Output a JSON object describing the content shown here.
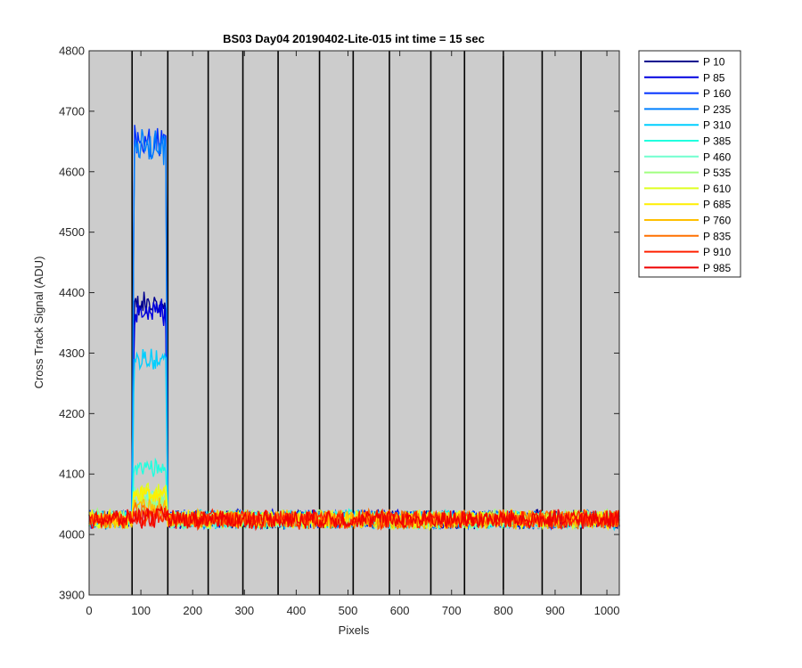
{
  "chart_data": {
    "type": "line",
    "title": "BS03 Day04 20190402-Lite-015 int time = 15 sec",
    "xlabel": "Pixels",
    "ylabel": "Cross Track Signal (ADU)",
    "xlim": [
      0,
      1024
    ],
    "ylim": [
      3900,
      4800
    ],
    "xticks": [
      0,
      100,
      200,
      300,
      400,
      500,
      600,
      700,
      800,
      900,
      1000
    ],
    "yticks": [
      3900,
      4000,
      4100,
      4200,
      4300,
      4400,
      4500,
      4600,
      4700,
      4800
    ],
    "xtick_labels": [
      "0",
      "100",
      "200",
      "300",
      "400",
      "500",
      "600",
      "700",
      "800",
      "900",
      "1000"
    ],
    "ytick_labels": [
      "3900",
      "4000",
      "4100",
      "4200",
      "4300",
      "4400",
      "4500",
      "4600",
      "4700",
      "4800"
    ],
    "background": "#cccccc",
    "legend_position": "outside-top-right",
    "column_dividers": [
      83,
      152,
      230,
      297,
      365,
      445,
      510,
      580,
      660,
      725,
      800,
      875,
      950
    ],
    "baseline": 4025,
    "noise_amplitude": 14,
    "block_range": [
      83,
      152
    ],
    "series": [
      {
        "name": "P 10",
        "color": "#00008f",
        "block_level": 4380
      },
      {
        "name": "P 85",
        "color": "#0000df",
        "block_level": 4370
      },
      {
        "name": "P 160",
        "color": "#0030ff",
        "block_level": 4650
      },
      {
        "name": "P 235",
        "color": "#0080ff",
        "block_level": 4640
      },
      {
        "name": "P 310",
        "color": "#00cfff",
        "block_level": 4290
      },
      {
        "name": "P 385",
        "color": "#20ffdf",
        "block_level": 4110
      },
      {
        "name": "P 460",
        "color": "#70ffcf",
        "block_level": 4060
      },
      {
        "name": "P 535",
        "color": "#a0ff80",
        "block_level": 4050
      },
      {
        "name": "P 610",
        "color": "#dfff20",
        "block_level": 4070
      },
      {
        "name": "P 685",
        "color": "#ffef00",
        "block_level": 4065
      },
      {
        "name": "P 760",
        "color": "#ffbf00",
        "block_level": 4045
      },
      {
        "name": "P 835",
        "color": "#ff7000",
        "block_level": 4035
      },
      {
        "name": "P 910",
        "color": "#ff2000",
        "block_level": 4030
      },
      {
        "name": "P 985",
        "color": "#ef0000",
        "block_level": 4028
      }
    ]
  }
}
